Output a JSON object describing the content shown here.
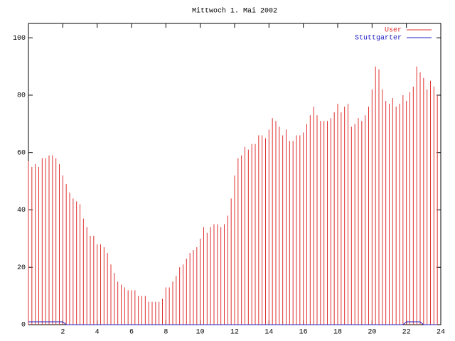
{
  "chart_data": {
    "type": "impulse",
    "title": "Mittwoch 1. Mai 2002",
    "x": [
      0,
      0.2,
      0.4,
      0.6,
      0.8,
      1,
      1.2,
      1.4,
      1.6,
      1.8,
      2,
      2.2,
      2.4,
      2.6,
      2.8,
      3,
      3.2,
      3.4,
      3.6,
      3.8,
      4,
      4.2,
      4.4,
      4.6,
      4.8,
      5,
      5.2,
      5.4,
      5.6,
      5.8,
      6,
      6.2,
      6.4,
      6.6,
      6.8,
      7,
      7.2,
      7.4,
      7.6,
      7.8,
      8,
      8.2,
      8.4,
      8.6,
      8.8,
      9,
      9.2,
      9.4,
      9.6,
      9.8,
      10,
      10.2,
      10.4,
      10.6,
      10.8,
      11,
      11.2,
      11.4,
      11.6,
      11.8,
      12,
      12.2,
      12.4,
      12.6,
      12.8,
      13,
      13.2,
      13.4,
      13.6,
      13.8,
      14,
      14.2,
      14.4,
      14.6,
      14.8,
      15,
      15.2,
      15.4,
      15.6,
      15.8,
      16,
      16.2,
      16.4,
      16.6,
      16.8,
      17,
      17.2,
      17.4,
      17.6,
      17.8,
      18,
      18.2,
      18.4,
      18.6,
      18.8,
      19,
      19.2,
      19.4,
      19.6,
      19.8,
      20,
      20.2,
      20.4,
      20.6,
      20.8,
      21,
      21.2,
      21.4,
      21.6,
      21.8,
      22,
      22.2,
      22.4,
      22.6,
      22.8,
      23,
      23.2,
      23.4,
      23.6,
      23.8
    ],
    "series": [
      {
        "name": "User",
        "color": "#e03030",
        "style": "impulses",
        "values": [
          57,
          55,
          56,
          55,
          58,
          58,
          59,
          59,
          58,
          56,
          52,
          49,
          46,
          44,
          43,
          42,
          37,
          34,
          31,
          31,
          28,
          28,
          27,
          25,
          21,
          18,
          15,
          14,
          13,
          12,
          12,
          12,
          10,
          10,
          10,
          8,
          8,
          8,
          8,
          9,
          13,
          13,
          15,
          17,
          20,
          21,
          23,
          25,
          26,
          27,
          30,
          34,
          32,
          34,
          35,
          35,
          34,
          35,
          38,
          44,
          52,
          58,
          59,
          62,
          61,
          63,
          63,
          66,
          66,
          65,
          68,
          72,
          71,
          69,
          66,
          68,
          64,
          64,
          66,
          66,
          67,
          70,
          73,
          76,
          73,
          71,
          71,
          71,
          72,
          74,
          77,
          74,
          76,
          77,
          69,
          70,
          72,
          71,
          73,
          76,
          82,
          90,
          89,
          82,
          78,
          77,
          79,
          76,
          77,
          80,
          78,
          81,
          83,
          90,
          88,
          86,
          82,
          85,
          83,
          80
        ]
      },
      {
        "name": "Stuttgarter",
        "color": "#2020c0",
        "style": "lines",
        "values": [
          1,
          1,
          1,
          1,
          1,
          1,
          1,
          1,
          1,
          1,
          1,
          0,
          0,
          0,
          0,
          0,
          0,
          0,
          0,
          0,
          0,
          0,
          0,
          0,
          0,
          0,
          0,
          0,
          0,
          0,
          0,
          0,
          0,
          0,
          0,
          0,
          0,
          0,
          0,
          0,
          0,
          0,
          0,
          0,
          0,
          0,
          0,
          0,
          0,
          0,
          0,
          0,
          0,
          0,
          0,
          0,
          0,
          0,
          0,
          0,
          0,
          0,
          0,
          0,
          0,
          0,
          0,
          0,
          0,
          0,
          0,
          0,
          0,
          0,
          0,
          0,
          0,
          0,
          0,
          0,
          0,
          0,
          0,
          0,
          0,
          0,
          0,
          0,
          0,
          0,
          0,
          0,
          0,
          0,
          0,
          0,
          0,
          0,
          0,
          0,
          0,
          0,
          0,
          0,
          0,
          0,
          0,
          0,
          0,
          0,
          1,
          1,
          1,
          1,
          1,
          0,
          0,
          0,
          0,
          0
        ]
      }
    ],
    "xlim": [
      0,
      24
    ],
    "xticks": [
      2,
      4,
      6,
      8,
      10,
      12,
      14,
      16,
      18,
      20,
      22,
      24
    ],
    "ylim": [
      0,
      105
    ],
    "yticks": [
      0,
      20,
      40,
      60,
      80,
      100
    ]
  }
}
